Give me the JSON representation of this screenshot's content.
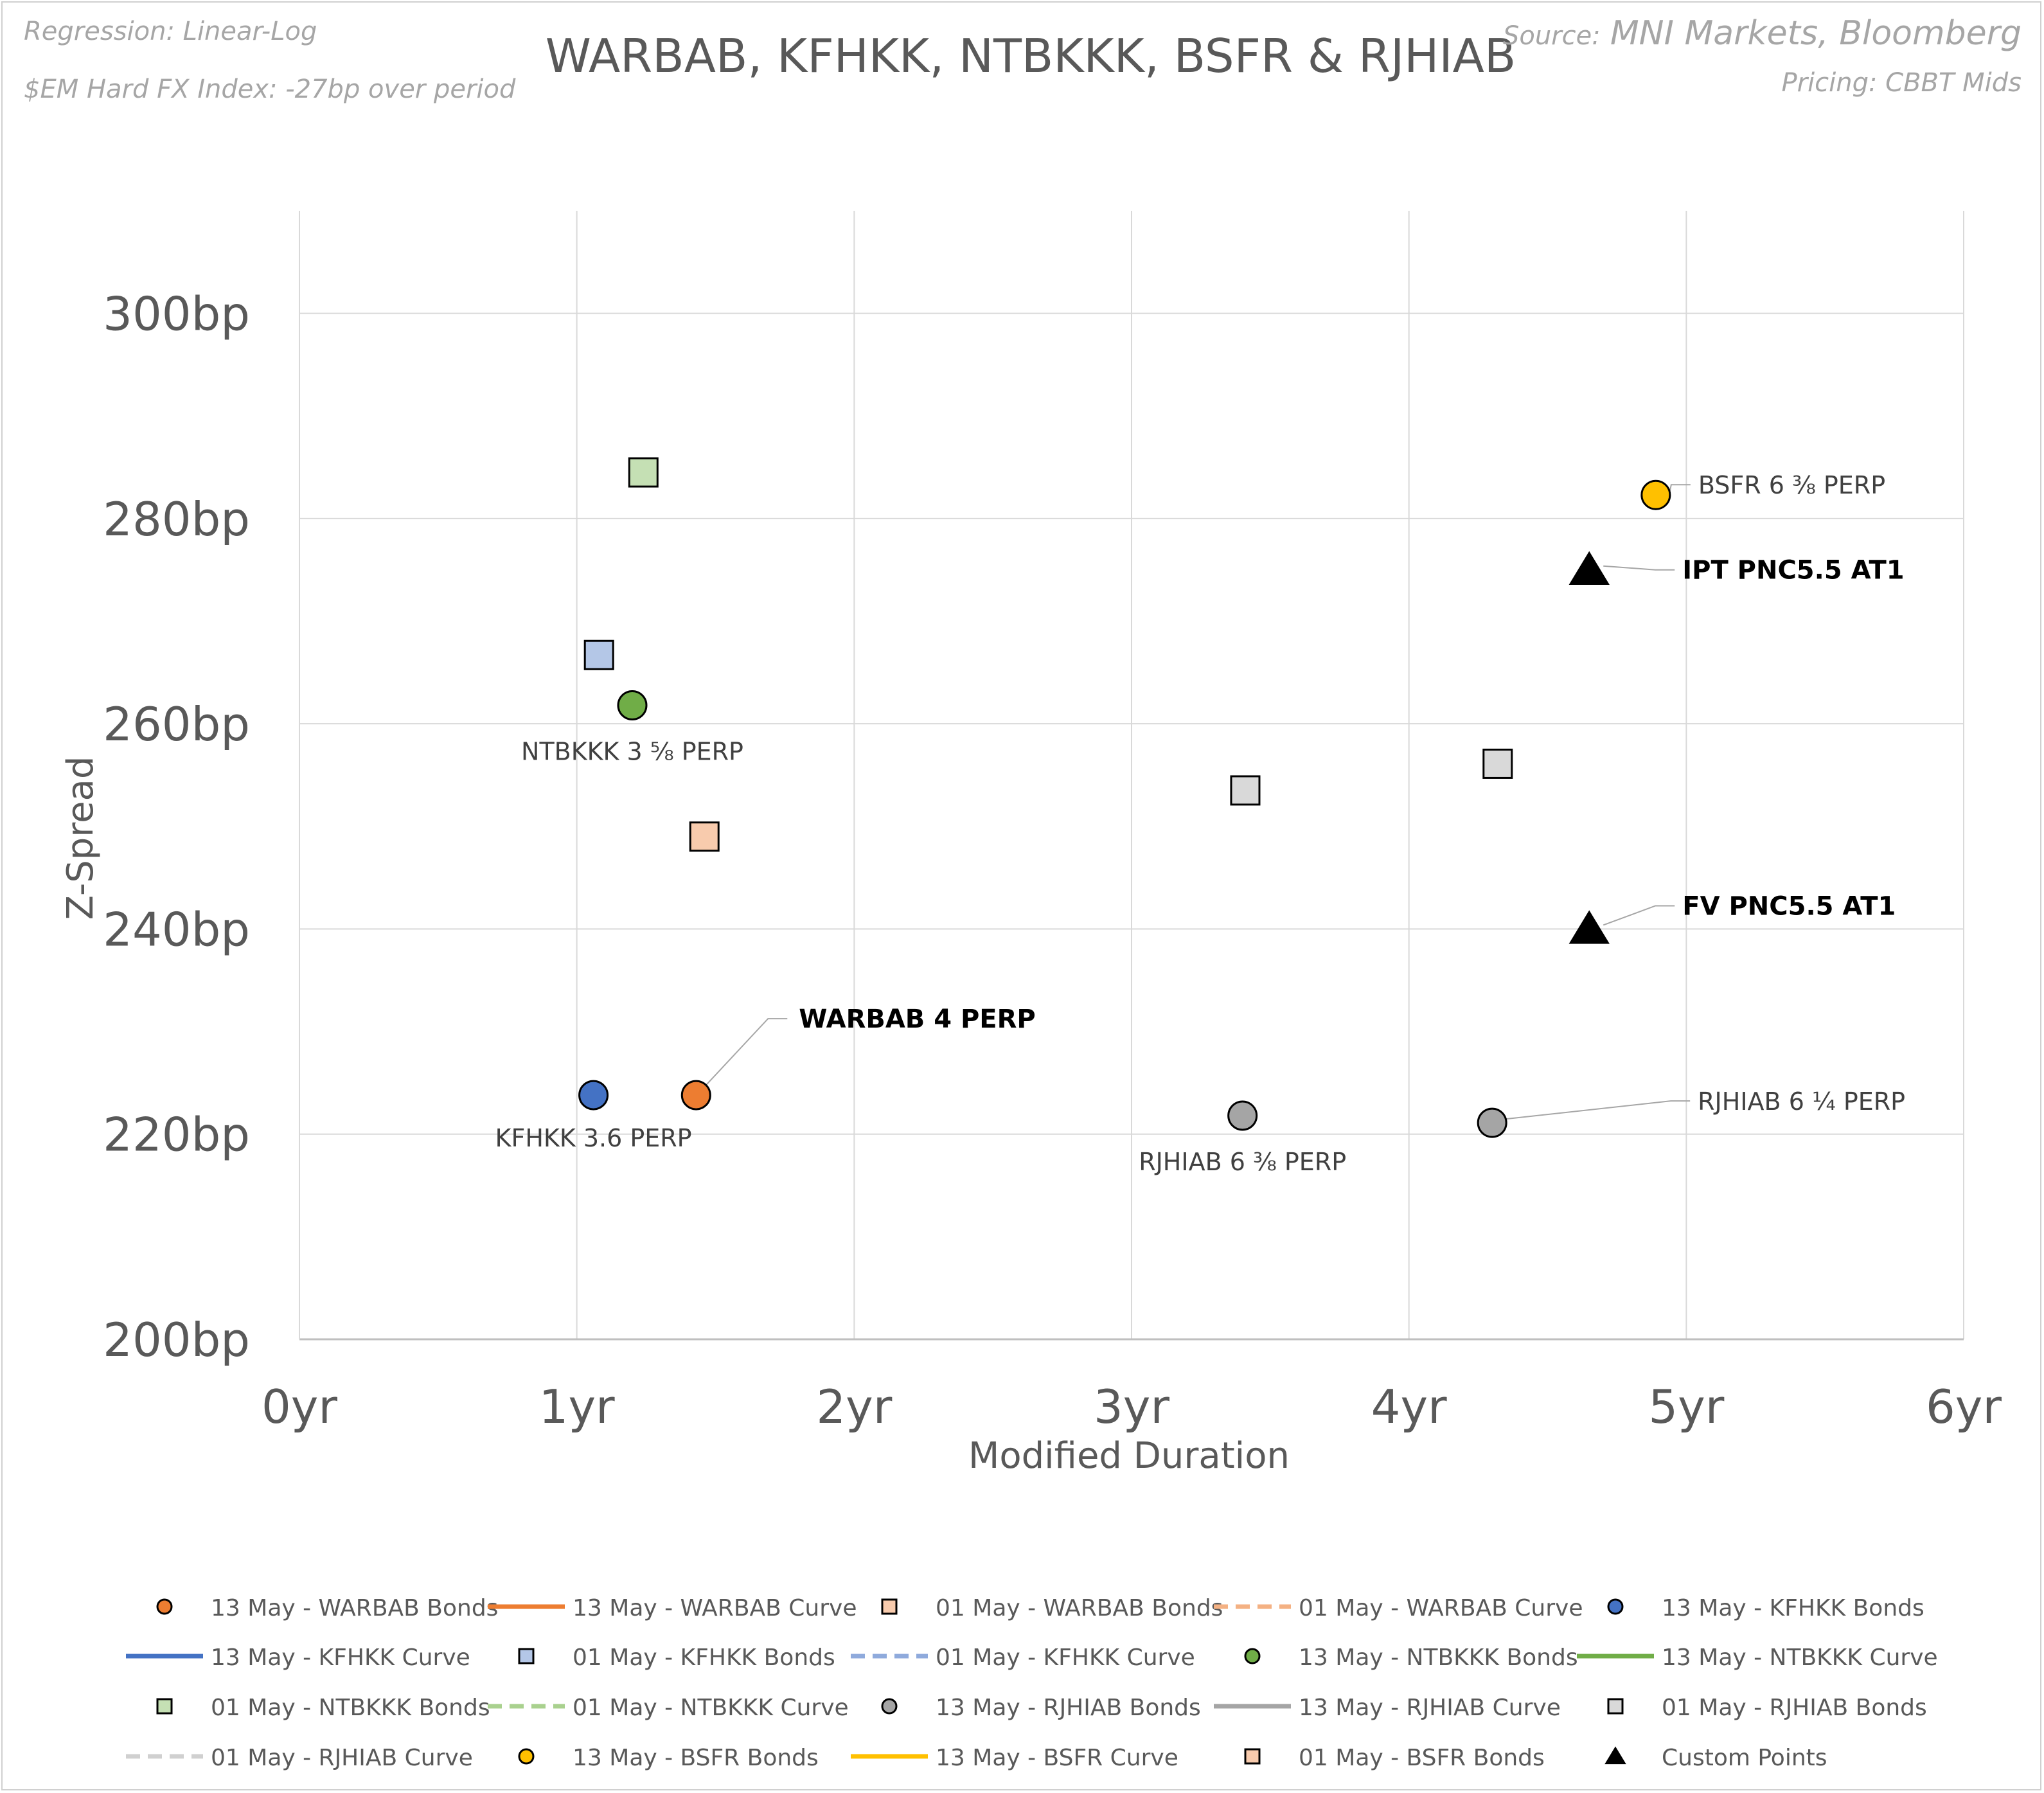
{
  "notes": {
    "regression": "Regression: Linear-Log",
    "index": "$EM Hard FX Index: -27bp over period",
    "source_prefix": "Source:",
    "source_name": "MNI Markets, Bloomberg",
    "pricing": "Pricing: CBBT Mids"
  },
  "chart_data": {
    "type": "scatter",
    "title": "WARBAB, KFHKK, NTBKKK, BSFR & RJHIAB",
    "xlabel": "Modified Duration",
    "ylabel": "Z-Spread",
    "xlim": [
      0,
      6
    ],
    "ylim": [
      200,
      310
    ],
    "x_ticks": [
      0,
      1,
      2,
      3,
      4,
      5,
      6
    ],
    "x_tick_labels": [
      "0yr",
      "1yr",
      "2yr",
      "3yr",
      "4yr",
      "5yr",
      "6yr"
    ],
    "y_ticks": [
      200,
      220,
      240,
      260,
      280,
      300
    ],
    "y_tick_labels": [
      "200bp",
      "220bp",
      "240bp",
      "260bp",
      "280bp",
      "300bp"
    ],
    "grid": true,
    "series": [
      {
        "name": "13 May - WARBAB Bonds",
        "marker": "circle",
        "color": "#ED7D31",
        "points": [
          {
            "x": 1.43,
            "y": 223.8,
            "label": "WARBAB 4 PERP",
            "bold": true
          }
        ]
      },
      {
        "name": "01 May - WARBAB Bonds",
        "marker": "square",
        "color": "#F8CBAD",
        "points": [
          {
            "x": 1.46,
            "y": 249.0
          }
        ]
      },
      {
        "name": "13 May - KFHKK Bonds",
        "marker": "circle",
        "color": "#4472C4",
        "points": [
          {
            "x": 1.06,
            "y": 223.8,
            "label": "KFHKK 3.6 PERP"
          }
        ]
      },
      {
        "name": "01 May - KFHKK Bonds",
        "marker": "square",
        "color": "#B4C7E7",
        "points": [
          {
            "x": 1.08,
            "y": 266.7
          }
        ]
      },
      {
        "name": "13 May - NTBKKK Bonds",
        "marker": "circle",
        "color": "#70AD47",
        "points": [
          {
            "x": 1.2,
            "y": 261.8,
            "label": "NTBKKK 3 ⅝ PERP"
          }
        ]
      },
      {
        "name": "01 May - NTBKKK Bonds",
        "marker": "square",
        "color": "#C5E0B4",
        "points": [
          {
            "x": 1.24,
            "y": 284.5
          }
        ]
      },
      {
        "name": "13 May - RJHIAB Bonds",
        "marker": "circle",
        "color": "#A5A5A5",
        "points": [
          {
            "x": 3.4,
            "y": 221.8,
            "label": "RJHIAB 6 ⅜ PERP"
          },
          {
            "x": 4.3,
            "y": 221.1,
            "label": "RJHIAB 6 ¼ PERP"
          }
        ]
      },
      {
        "name": "01 May - RJHIAB Bonds",
        "marker": "square",
        "color": "#D9D9D9",
        "points": [
          {
            "x": 3.41,
            "y": 253.5
          },
          {
            "x": 4.32,
            "y": 256.1
          }
        ]
      },
      {
        "name": "13 May - BSFR Bonds",
        "marker": "circle",
        "color": "#FFC000",
        "points": [
          {
            "x": 4.89,
            "y": 282.3,
            "label": "BSFR 6 ⅜ PERP"
          }
        ]
      },
      {
        "name": "Custom Points",
        "marker": "triangle",
        "color": "#000000",
        "points": [
          {
            "x": 4.65,
            "y": 275.0,
            "label": "IPT PNC5.5 AT1",
            "bold": true
          },
          {
            "x": 4.65,
            "y": 240.0,
            "label": "FV PNC5.5 AT1",
            "bold": true
          }
        ]
      }
    ],
    "legend": {
      "placement": "bottom",
      "entries": [
        {
          "label": "13 May - WARBAB Bonds",
          "kind": "circle",
          "color": "#ED7D31"
        },
        {
          "label": "13 May - WARBAB Curve",
          "kind": "line",
          "color": "#ED7D31"
        },
        {
          "label": "01 May - WARBAB Bonds",
          "kind": "square",
          "color": "#F8CBAD"
        },
        {
          "label": "01 May - WARBAB Curve",
          "kind": "dash",
          "color": "#F4B183"
        },
        {
          "label": "13 May - KFHKK Bonds",
          "kind": "circle",
          "color": "#4472C4"
        },
        {
          "label": "13 May - KFHKK Curve",
          "kind": "line",
          "color": "#4472C4"
        },
        {
          "label": "01 May - KFHKK Bonds",
          "kind": "square",
          "color": "#B4C7E7"
        },
        {
          "label": "01 May - KFHKK Curve",
          "kind": "dash",
          "color": "#8FAADC"
        },
        {
          "label": "13 May - NTBKKK Bonds",
          "kind": "circle",
          "color": "#70AD47"
        },
        {
          "label": "13 May - NTBKKK Curve",
          "kind": "line",
          "color": "#70AD47"
        },
        {
          "label": "01 May - NTBKKK Bonds",
          "kind": "square",
          "color": "#C5E0B4"
        },
        {
          "label": "01 May - NTBKKK Curve",
          "kind": "dash",
          "color": "#A9D18E"
        },
        {
          "label": "13 May - RJHIAB Bonds",
          "kind": "circle",
          "color": "#A5A5A5"
        },
        {
          "label": "13 May - RJHIAB Curve",
          "kind": "line",
          "color": "#A5A5A5"
        },
        {
          "label": "01 May - RJHIAB Bonds",
          "kind": "square",
          "color": "#D9D9D9"
        },
        {
          "label": "01 May - RJHIAB Curve",
          "kind": "dash",
          "color": "#D0D0D0"
        },
        {
          "label": "13 May - BSFR Bonds",
          "kind": "circle",
          "color": "#FFC000"
        },
        {
          "label": "13 May - BSFR Curve",
          "kind": "line",
          "color": "#FFC000"
        },
        {
          "label": "01 May - BSFR Bonds",
          "kind": "square",
          "color": "#F8CBAD"
        },
        {
          "label": "Custom Points",
          "kind": "triangle",
          "color": "#000000"
        }
      ]
    }
  }
}
